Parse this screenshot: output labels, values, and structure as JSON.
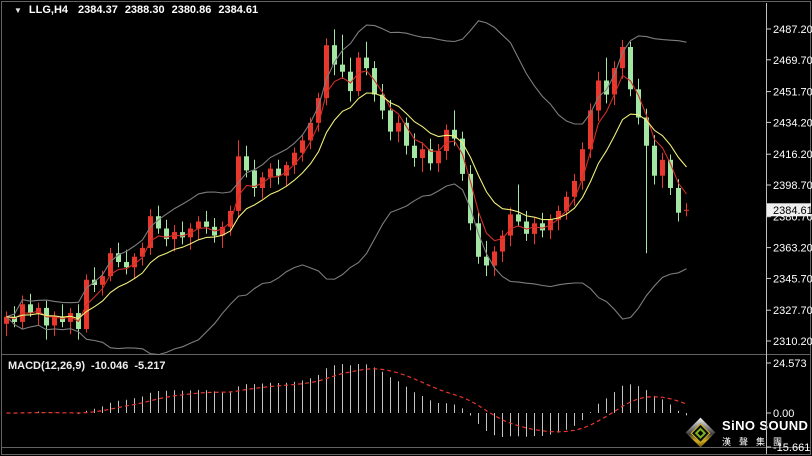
{
  "window": {
    "background": "#000000",
    "frame_color": "#636363",
    "axis_line_color": "#bdbdbd"
  },
  "header": {
    "dropdown_icon": "▼",
    "symbol_timeframe": "LLG,H4",
    "open": "2384.37",
    "high": "2388.30",
    "low": "2380.86",
    "close": "2384.61"
  },
  "macd_panel": {
    "label": "MACD(12,26,9)",
    "macd_value": "-10.046",
    "signal_value": "-5.217",
    "axis_ticks": [
      "24.573",
      "0.00",
      "-15.661"
    ]
  },
  "logo": {
    "name": "SiNO SOUND",
    "chinese": "漢聲集團"
  },
  "chart_data": {
    "type": "candlestick",
    "title": "LLG H4 candlestick chart with Bollinger bands, fast/slow moving averages and MACD(12,26,9) subwindow",
    "price_axis": {
      "ticks": [
        "2487.20",
        "2469.70",
        "2451.70",
        "2434.20",
        "2416.20",
        "2398.70",
        "2380.70",
        "2363.20",
        "2345.70",
        "2327.70",
        "2310.20"
      ],
      "current": "2384.61"
    },
    "colors": {
      "bull": "#e8372c",
      "bear": "#a3e6a3",
      "band": "#7d7d7d",
      "ma_fast": "#d02f26",
      "ma_slow": "#efee7a",
      "macd_hist": "#c4c4c4",
      "macd_signal": "#e8372c",
      "axis_text": "#ffffff",
      "price_tag_bg": "#efefef",
      "price_tag_text": "#000000"
    },
    "render_hints": {
      "bars_visible": 86,
      "band_period": 20,
      "band_deviation": 2,
      "ma_fast_period": 4,
      "ma_slow_period": 10,
      "macd_periods": [
        12,
        26,
        9
      ],
      "grid": false,
      "legend_position": "none"
    },
    "candles": [
      [
        2320,
        2327,
        2313,
        2324
      ],
      [
        2324,
        2330,
        2318,
        2321
      ],
      [
        2321,
        2336,
        2317,
        2331
      ],
      [
        2331,
        2337,
        2324,
        2326
      ],
      [
        2326,
        2332,
        2319,
        2329
      ],
      [
        2329,
        2333,
        2311,
        2319
      ],
      [
        2319,
        2327,
        2313,
        2324
      ],
      [
        2324,
        2331,
        2318,
        2321
      ],
      [
        2321,
        2329,
        2314,
        2326
      ],
      [
        2326,
        2331,
        2311,
        2317
      ],
      [
        2317,
        2348,
        2315,
        2345
      ],
      [
        2345,
        2352,
        2338,
        2342
      ],
      [
        2342,
        2350,
        2336,
        2347
      ],
      [
        2347,
        2363,
        2344,
        2360
      ],
      [
        2360,
        2366,
        2352,
        2355
      ],
      [
        2355,
        2362,
        2348,
        2352
      ],
      [
        2352,
        2360,
        2346,
        2358
      ],
      [
        2358,
        2366,
        2353,
        2363
      ],
      [
        2363,
        2385,
        2359,
        2381
      ],
      [
        2381,
        2387,
        2371,
        2374
      ],
      [
        2374,
        2379,
        2364,
        2368
      ],
      [
        2368,
        2376,
        2361,
        2372
      ],
      [
        2372,
        2378,
        2365,
        2369
      ],
      [
        2369,
        2377,
        2362,
        2374
      ],
      [
        2374,
        2381,
        2368,
        2378
      ],
      [
        2378,
        2384,
        2371,
        2375
      ],
      [
        2375,
        2380,
        2366,
        2370
      ],
      [
        2370,
        2378,
        2363,
        2375
      ],
      [
        2375,
        2387,
        2370,
        2384
      ],
      [
        2384,
        2424,
        2380,
        2415
      ],
      [
        2415,
        2421,
        2403,
        2407
      ],
      [
        2407,
        2413,
        2392,
        2397
      ],
      [
        2397,
        2406,
        2391,
        2403
      ],
      [
        2403,
        2411,
        2397,
        2408
      ],
      [
        2408,
        2413,
        2399,
        2404
      ],
      [
        2404,
        2412,
        2398,
        2410
      ],
      [
        2410,
        2420,
        2405,
        2417
      ],
      [
        2417,
        2427,
        2412,
        2424
      ],
      [
        2424,
        2437,
        2419,
        2434
      ],
      [
        2434,
        2451,
        2429,
        2448
      ],
      [
        2448,
        2482,
        2444,
        2478
      ],
      [
        2478,
        2487,
        2461,
        2467
      ],
      [
        2467,
        2484,
        2459,
        2463
      ],
      [
        2463,
        2471,
        2446,
        2452
      ],
      [
        2452,
        2474,
        2449,
        2471
      ],
      [
        2471,
        2480,
        2461,
        2465
      ],
      [
        2465,
        2469,
        2446,
        2450
      ],
      [
        2450,
        2456,
        2436,
        2441
      ],
      [
        2441,
        2447,
        2424,
        2429
      ],
      [
        2429,
        2438,
        2423,
        2434
      ],
      [
        2434,
        2437,
        2416,
        2421
      ],
      [
        2421,
        2428,
        2409,
        2414
      ],
      [
        2414,
        2423,
        2406,
        2419
      ],
      [
        2419,
        2425,
        2407,
        2411
      ],
      [
        2411,
        2422,
        2406,
        2418
      ],
      [
        2418,
        2433,
        2413,
        2430
      ],
      [
        2430,
        2441,
        2421,
        2425
      ],
      [
        2425,
        2429,
        2401,
        2405
      ],
      [
        2405,
        2410,
        2373,
        2377
      ],
      [
        2377,
        2383,
        2354,
        2358
      ],
      [
        2358,
        2367,
        2347,
        2353
      ],
      [
        2353,
        2364,
        2347,
        2361
      ],
      [
        2361,
        2373,
        2355,
        2370
      ],
      [
        2370,
        2386,
        2364,
        2382
      ],
      [
        2382,
        2399,
        2375,
        2378
      ],
      [
        2378,
        2384,
        2367,
        2371
      ],
      [
        2371,
        2380,
        2365,
        2377
      ],
      [
        2377,
        2383,
        2369,
        2373
      ],
      [
        2373,
        2382,
        2368,
        2379
      ],
      [
        2379,
        2387,
        2373,
        2384
      ],
      [
        2384,
        2395,
        2379,
        2392
      ],
      [
        2392,
        2405,
        2387,
        2401
      ],
      [
        2401,
        2423,
        2396,
        2419
      ],
      [
        2419,
        2445,
        2414,
        2441
      ],
      [
        2441,
        2463,
        2435,
        2458
      ],
      [
        2458,
        2471,
        2445,
        2450
      ],
      [
        2450,
        2469,
        2444,
        2465
      ],
      [
        2465,
        2481,
        2459,
        2477
      ],
      [
        2477,
        2480,
        2449,
        2453
      ],
      [
        2453,
        2459,
        2433,
        2437
      ],
      [
        2437,
        2442,
        2360,
        2421
      ],
      [
        2421,
        2427,
        2399,
        2404
      ],
      [
        2404,
        2417,
        2397,
        2413
      ],
      [
        2413,
        2416,
        2393,
        2397
      ],
      [
        2397,
        2402,
        2378,
        2383
      ],
      [
        2384.37,
        2388.3,
        2380.86,
        2384.61
      ]
    ]
  }
}
